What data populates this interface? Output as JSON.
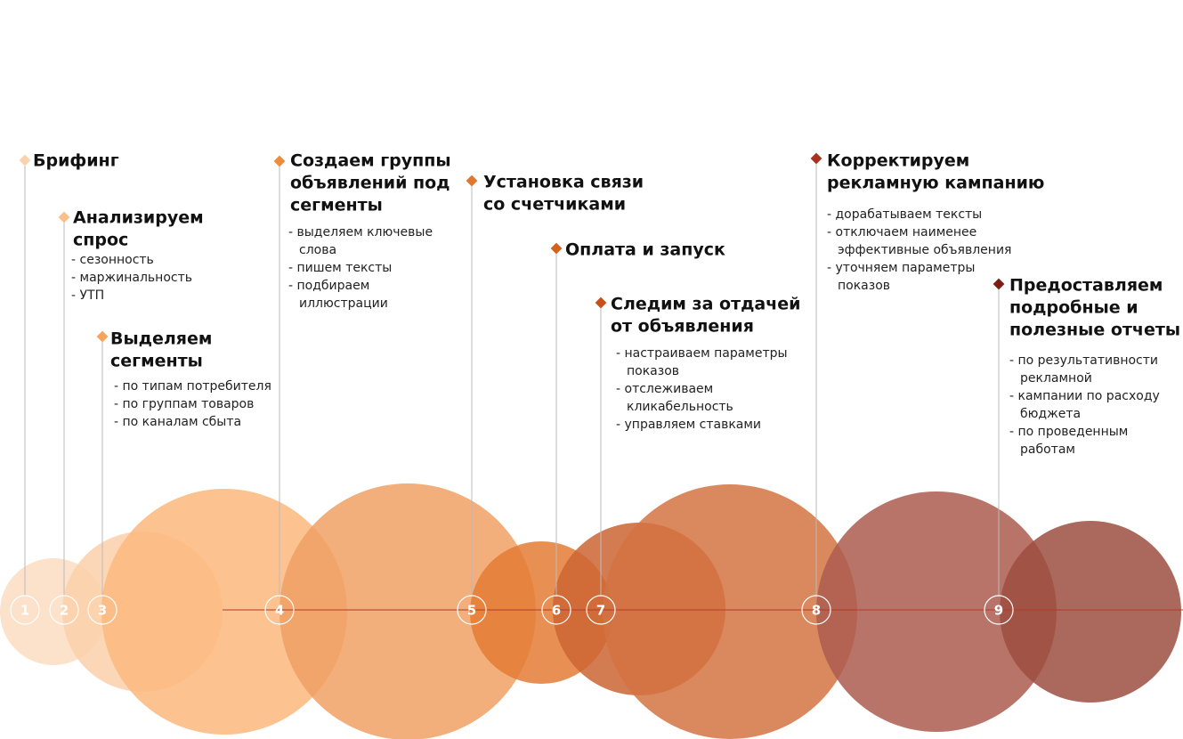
{
  "steps": [
    {
      "number": "1",
      "title": [
        "Брифинг"
      ],
      "items": []
    },
    {
      "number": "2",
      "title": [
        "Анализируем",
        "спрос"
      ],
      "items": [
        "- сезонность",
        "- маржинальность",
        "- УТП"
      ]
    },
    {
      "number": "3",
      "title": [
        "Выделяем",
        "сегменты"
      ],
      "items": [
        "- по типам потребителя",
        "- по группам товаров",
        "- по каналам сбыта"
      ]
    },
    {
      "number": "4",
      "title": [
        "Создаем группы",
        "объявлений под",
        "сегменты"
      ],
      "items": [
        "- выделяем ключевые",
        "слова",
        "- пишем тексты",
        "- подбираем",
        "иллюстрации"
      ]
    },
    {
      "number": "5",
      "title": [
        "Установка связи",
        "со счетчиками"
      ],
      "items": []
    },
    {
      "number": "6",
      "title": [
        "Оплата и запуск"
      ],
      "items": []
    },
    {
      "number": "7",
      "title": [
        "Следим за отдачей",
        "от объявления"
      ],
      "items": [
        "- настраиваем параметры",
        "показов",
        "- отслеживаем",
        "кликабельность",
        "- управляем ставками"
      ]
    },
    {
      "number": "8",
      "title": [
        "Корректируем",
        "рекламную кампанию"
      ],
      "items": [
        "- дорабатываем тексты",
        "- отключаем наименее",
        "эффективные объявления",
        "- уточняем параметры",
        "показов"
      ]
    },
    {
      "number": "9",
      "title": [
        "Предоставляем",
        "подробные и",
        "полезные отчеты"
      ],
      "items": [
        "- по результативности",
        "рекламной",
        "- кампании по расходу",
        "бюджета",
        "- по проведенным",
        "работам"
      ]
    }
  ]
}
